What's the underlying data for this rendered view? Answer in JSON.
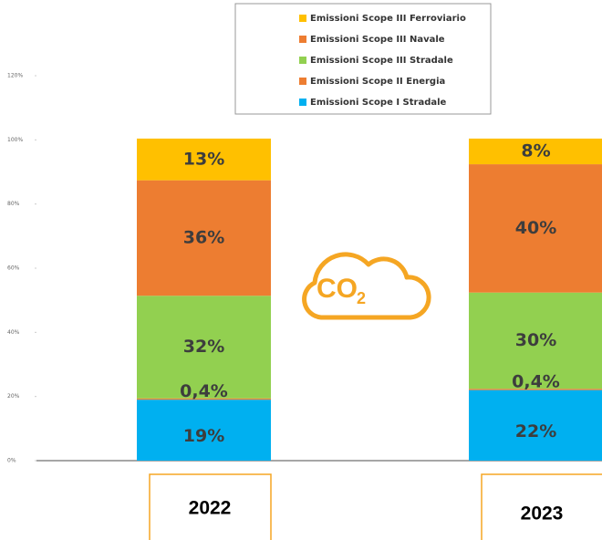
{
  "chart_data": {
    "type": "stacked_bar",
    "categories": [
      "2022",
      "2023"
    ],
    "series": [
      {
        "name": "Emissioni Scope I Stradale",
        "color": "#00b0f0",
        "values": [
          19,
          22
        ],
        "value_labels": [
          "19%",
          "22%"
        ]
      },
      {
        "name": "Emissioni Scope II Energia",
        "color": "#ed7d31",
        "values": [
          0.4,
          0.4
        ],
        "value_labels": [
          "0,4%",
          "0,4%"
        ]
      },
      {
        "name": "Emissioni Scope III Stradale",
        "color": "#92d050",
        "values": [
          32,
          30
        ],
        "value_labels": [
          "32%",
          "30%"
        ]
      },
      {
        "name": "Emissioni Scope III Navale",
        "color": "#ed7d31",
        "values": [
          36,
          40
        ],
        "value_labels": [
          "36%",
          "40%"
        ]
      },
      {
        "name": "Emissioni Scope III Ferroviario",
        "color": "#ffc000",
        "values": [
          13,
          8
        ],
        "value_labels": [
          "13%",
          "8%"
        ]
      }
    ],
    "ylim": [
      0,
      120
    ],
    "yticks": [
      {
        "value": 0,
        "label": "0%"
      },
      {
        "value": 20,
        "label": "20%"
      },
      {
        "value": 40,
        "label": "40%"
      },
      {
        "value": 60,
        "label": "60%"
      },
      {
        "value": 80,
        "label": "80%"
      },
      {
        "value": 100,
        "label": "100%"
      },
      {
        "value": 120,
        "label": "120%"
      }
    ],
    "legend_position": "top",
    "icon_label": {
      "main": "CO",
      "sub": "2"
    }
  }
}
